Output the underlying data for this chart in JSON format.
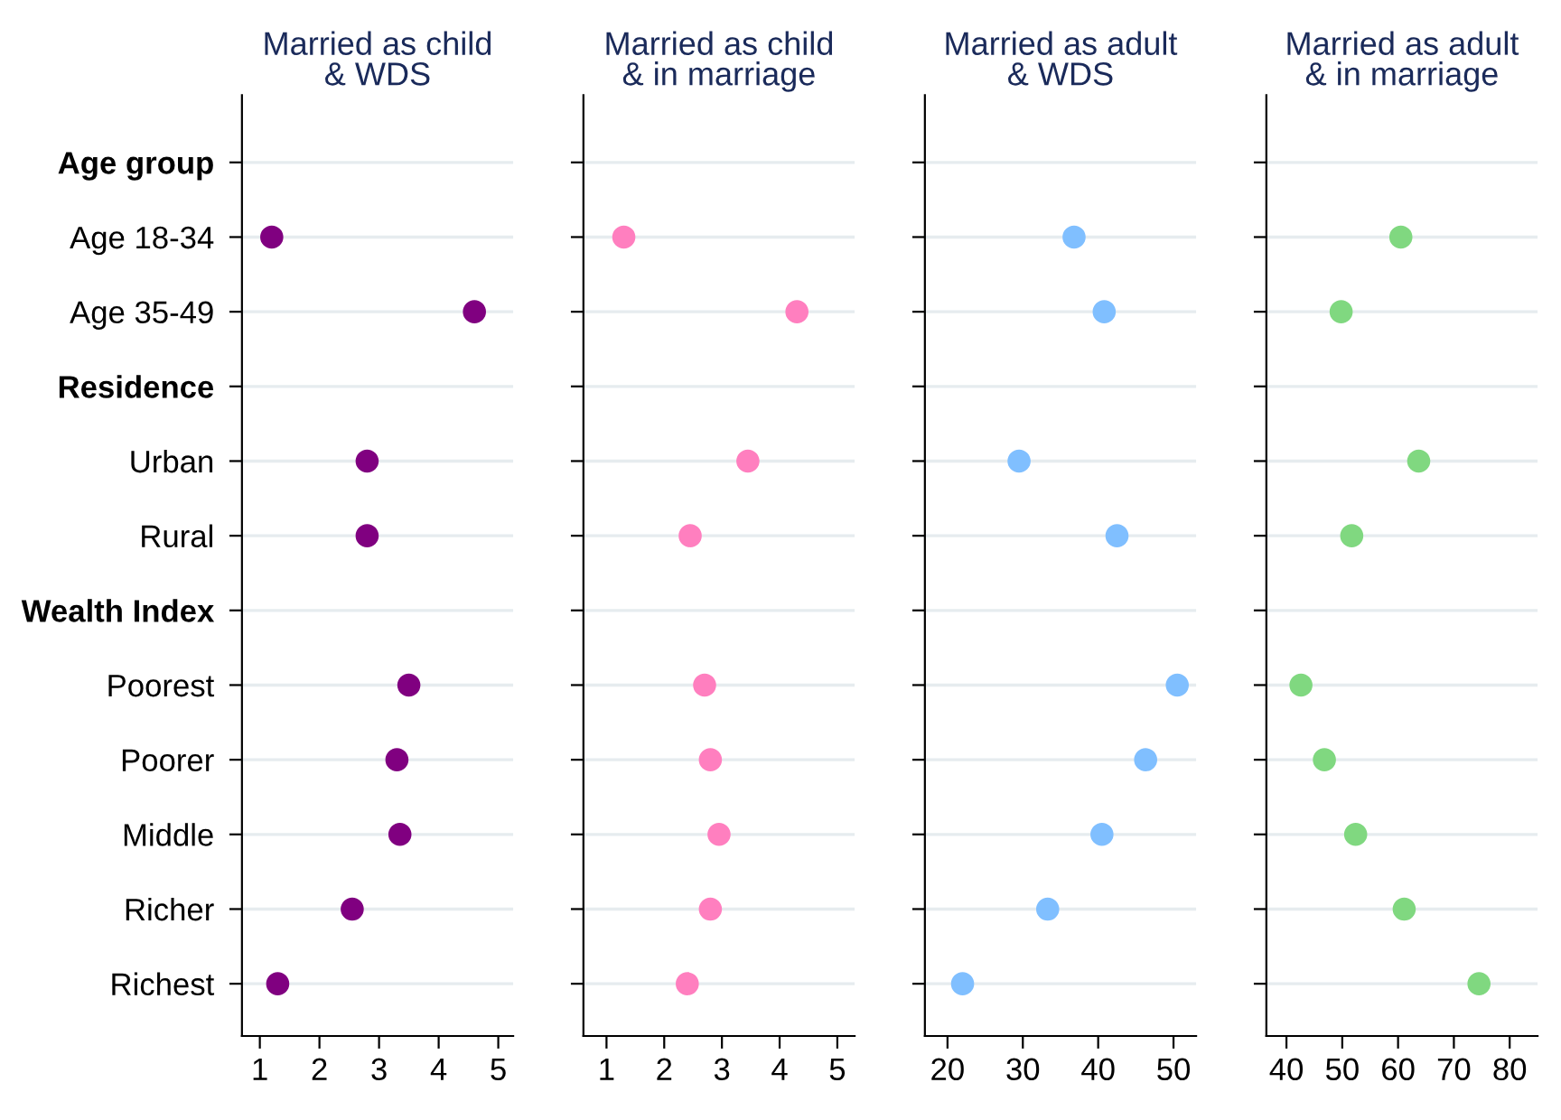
{
  "chart_data": [
    {
      "type": "scatter",
      "orientation": "horizontal",
      "title": "Married as child\n& WDS",
      "categories": [
        "Age group",
        "Age 18-34",
        "Age 35-49",
        "Residence",
        "Urban",
        "Rural",
        "Wealth Index",
        "Poorest",
        "Poorer",
        "Middle",
        "Richer",
        "Richest"
      ],
      "series": [
        {
          "color": "#800080",
          "values": [
            null,
            1.2,
            4.6,
            null,
            2.8,
            2.8,
            null,
            3.5,
            3.3,
            3.35,
            2.55,
            1.3
          ]
        }
      ],
      "xlim": [
        0.7,
        5.25
      ],
      "xticks": [
        1,
        2,
        3,
        4,
        5
      ],
      "grid": "y",
      "marker": "circle"
    },
    {
      "type": "scatter",
      "orientation": "horizontal",
      "title": "Married as child\n& in marriage",
      "categories": [
        null,
        null,
        null,
        null,
        null,
        null,
        null,
        null,
        null,
        null,
        null,
        null
      ],
      "series": [
        {
          "color": "#ff7fbf",
          "values": [
            null,
            1.3,
            4.3,
            null,
            3.45,
            2.45,
            null,
            2.7,
            2.8,
            2.95,
            2.8,
            2.4
          ]
        }
      ],
      "xlim": [
        0.6,
        5.3
      ],
      "xticks": [
        1,
        2,
        3,
        4,
        5
      ],
      "grid": "y",
      "marker": "circle",
      "tick_labels": "x"
    },
    {
      "type": "scatter",
      "orientation": "horizontal",
      "title": "Married as adult\n& WDS",
      "categories": [
        null,
        null,
        null,
        null,
        null,
        null,
        null,
        null,
        null,
        null,
        null,
        null
      ],
      "series": [
        {
          "color": "#80bfff",
          "values": [
            null,
            36.8,
            40.8,
            null,
            29.5,
            42.5,
            null,
            50.5,
            46.3,
            40.5,
            33.3,
            22
          ]
        }
      ],
      "xlim": [
        17,
        53
      ],
      "xticks": [
        20,
        30,
        40,
        50
      ],
      "grid": "y",
      "marker": "circle",
      "tick_labels": "x"
    },
    {
      "type": "scatter",
      "orientation": "horizontal",
      "title": "Married as adult\n& in marriage",
      "categories": [
        null,
        null,
        null,
        null,
        null,
        null,
        null,
        null,
        null,
        null,
        null,
        null
      ],
      "series": [
        {
          "color": "#80d880",
          "values": [
            null,
            60.5,
            49.8,
            null,
            63.7,
            51.7,
            null,
            42.6,
            46.8,
            52.4,
            61.1,
            74.5
          ]
        }
      ],
      "xlim": [
        36.4,
        85
      ],
      "xticks": [
        40,
        50,
        60,
        70,
        80
      ],
      "grid": "y",
      "marker": "circle",
      "tick_labels": "x"
    }
  ]
}
